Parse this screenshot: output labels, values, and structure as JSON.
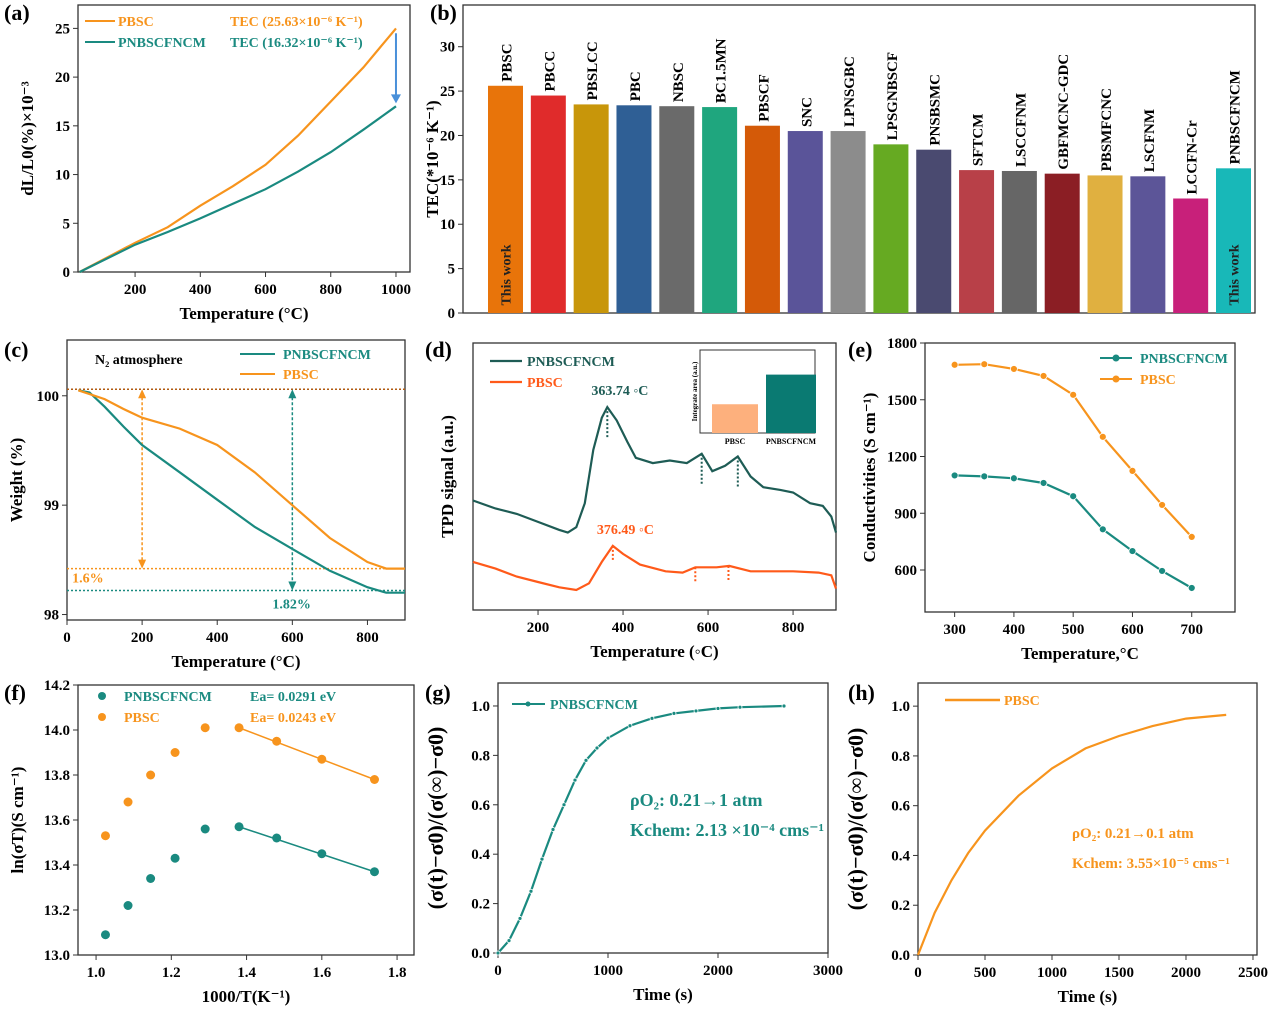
{
  "chart_data": [
    {
      "panel": "(a)",
      "type": "line",
      "xlabel": "Temperature (°C)",
      "ylabel": "dL/L0(%)×10⁻³",
      "xlim": [
        25,
        1043
      ],
      "ylim": [
        0,
        27.4
      ],
      "xticks": [
        200,
        400,
        600,
        800,
        1000
      ],
      "yticks": [
        0,
        5,
        10,
        15,
        20,
        25
      ],
      "series": [
        {
          "name": "PBSC",
          "color": "#f7941d",
          "legend_note": "TEC (25.63×10⁻⁶ K⁻¹)",
          "points": [
            [
              30,
              0
            ],
            [
              200,
              3.0
            ],
            [
              300,
              4.6
            ],
            [
              400,
              6.8
            ],
            [
              500,
              8.8
            ],
            [
              600,
              11.0
            ],
            [
              700,
              14.0
            ],
            [
              800,
              17.5
            ],
            [
              900,
              21.0
            ],
            [
              1000,
              25.0
            ]
          ]
        },
        {
          "name": "PNBSCFNCM",
          "color": "#1a8a80",
          "legend_note": "TEC (16.32×10⁻⁶ K⁻¹)",
          "points": [
            [
              30,
              0
            ],
            [
              200,
              2.8
            ],
            [
              300,
              4.1
            ],
            [
              400,
              5.5
            ],
            [
              500,
              7.0
            ],
            [
              600,
              8.5
            ],
            [
              700,
              10.3
            ],
            [
              800,
              12.3
            ],
            [
              900,
              14.6
            ],
            [
              1000,
              17.0
            ]
          ]
        }
      ],
      "arrow": {
        "x": 1000,
        "from": 24.5,
        "to": 17.3,
        "color": "#4a90d9"
      }
    },
    {
      "panel": "(b)",
      "type": "bar",
      "ylabel": "TEC(*10⁻⁶ K⁻¹)",
      "ylim": [
        0,
        34.7
      ],
      "yticks": [
        0,
        5,
        10,
        15,
        20,
        25,
        30
      ],
      "categories": [
        "PBSC",
        "PBCC",
        "PBSLCC",
        "PBC",
        "NBSC",
        "BC1.5MN",
        "PBSCF",
        "SNC",
        "LPNSGBC",
        "LPSGNBSCF",
        "PNSBSMC",
        "SFTCM",
        "LSCCFNM",
        "GBFMCNC-GDC",
        "PBSMFCNC",
        "LSCFNM",
        "LCCFN-Cr",
        "PNBSCFNCM"
      ],
      "values": [
        25.6,
        24.5,
        23.5,
        23.4,
        23.3,
        23.2,
        21.1,
        20.5,
        20.5,
        19.0,
        18.4,
        16.1,
        16.0,
        15.7,
        15.5,
        15.4,
        12.9,
        16.3
      ],
      "colors": [
        "#e8740a",
        "#e02b2b",
        "#c8960a",
        "#2f5f95",
        "#6a6a6a",
        "#1fa67e",
        "#d45a08",
        "#5a5499",
        "#8c8c8c",
        "#66aa22",
        "#4a4a70",
        "#b84048",
        "#666666",
        "#8b1e24",
        "#e0b040",
        "#5c5598",
        "#c8207a",
        "#18b8b8"
      ],
      "bar_notes": [
        {
          "index": 0,
          "text": "This work"
        },
        {
          "index": 17,
          "text": "This work"
        }
      ]
    },
    {
      "panel": "(c)",
      "type": "line",
      "xlabel": "Temperature (°C)",
      "ylabel": "Weight (%)",
      "xlim": [
        0,
        900
      ],
      "ylim": [
        97.95,
        100.51
      ],
      "xticks": [
        0,
        200,
        400,
        600,
        800
      ],
      "yticks": [
        98,
        99,
        100
      ],
      "annotation": "N₂ atmosphere",
      "series": [
        {
          "name": "PNBSCFNCM",
          "color": "#1a8a80",
          "points": [
            [
              30,
              100.05
            ],
            [
              60,
              100.03
            ],
            [
              100,
              99.9
            ],
            [
              150,
              99.72
            ],
            [
              200,
              99.55
            ],
            [
              300,
              99.3
            ],
            [
              400,
              99.05
            ],
            [
              500,
              98.8
            ],
            [
              600,
              98.6
            ],
            [
              700,
              98.4
            ],
            [
              800,
              98.25
            ],
            [
              850,
              98.2
            ],
            [
              900,
              98.2
            ]
          ]
        },
        {
          "name": "PBSC",
          "color": "#f7941d",
          "points": [
            [
              30,
              100.05
            ],
            [
              100,
              99.97
            ],
            [
              150,
              99.88
            ],
            [
              200,
              99.8
            ],
            [
              300,
              99.7
            ],
            [
              400,
              99.55
            ],
            [
              500,
              99.3
            ],
            [
              600,
              99.0
            ],
            [
              700,
              98.7
            ],
            [
              800,
              98.48
            ],
            [
              850,
              98.42
            ],
            [
              900,
              98.42
            ]
          ]
        }
      ],
      "reference_lines": [
        {
          "y": 100.06,
          "color": "#b05a10"
        },
        {
          "y": 98.42,
          "color": "#f7941d"
        },
        {
          "y": 98.22,
          "color": "#1a8a80"
        }
      ],
      "changes": [
        {
          "x": 200,
          "from": 100.06,
          "to": 98.42,
          "label": "1.6%",
          "color": "#f7941d"
        },
        {
          "x": 600,
          "from": 100.06,
          "to": 98.22,
          "label": "1.82%",
          "color": "#1a8a80"
        }
      ]
    },
    {
      "panel": "(d)",
      "type": "line",
      "xlabel": "Temperature (◦C)",
      "ylabel": "TPD signal (a.u.)",
      "xlim": [
        47,
        901
      ],
      "ylim": [
        0,
        1
      ],
      "xticks": [
        200,
        400,
        600,
        800
      ],
      "yticks": [],
      "series": [
        {
          "name": "PNBSCFNCM",
          "color": "#1e5c55",
          "points": [
            [
              47,
              0.41
            ],
            [
              100,
              0.38
            ],
            [
              150,
              0.36
            ],
            [
              200,
              0.33
            ],
            [
              250,
              0.3
            ],
            [
              270,
              0.29
            ],
            [
              290,
              0.31
            ],
            [
              310,
              0.4
            ],
            [
              330,
              0.6
            ],
            [
              350,
              0.72
            ],
            [
              363,
              0.76
            ],
            [
              385,
              0.71
            ],
            [
              410,
              0.63
            ],
            [
              430,
              0.57
            ],
            [
              470,
              0.55
            ],
            [
              510,
              0.56
            ],
            [
              550,
              0.55
            ],
            [
              585,
              0.585
            ],
            [
              610,
              0.52
            ],
            [
              640,
              0.54
            ],
            [
              670,
              0.575
            ],
            [
              700,
              0.5
            ],
            [
              730,
              0.46
            ],
            [
              770,
              0.45
            ],
            [
              800,
              0.44
            ],
            [
              840,
              0.4
            ],
            [
              870,
              0.39
            ],
            [
              890,
              0.35
            ],
            [
              901,
              0.29
            ]
          ],
          "peak_label": "363.74 ◦C",
          "markers": [
            363,
            585,
            670
          ]
        },
        {
          "name": "PBSC",
          "color": "#ff5a1a",
          "points": [
            [
              47,
              0.18
            ],
            [
              100,
              0.155
            ],
            [
              150,
              0.125
            ],
            [
              200,
              0.105
            ],
            [
              250,
              0.085
            ],
            [
              290,
              0.075
            ],
            [
              320,
              0.1
            ],
            [
              350,
              0.18
            ],
            [
              376,
              0.24
            ],
            [
              400,
              0.21
            ],
            [
              440,
              0.17
            ],
            [
              500,
              0.145
            ],
            [
              540,
              0.14
            ],
            [
              570,
              0.16
            ],
            [
              620,
              0.16
            ],
            [
              650,
              0.165
            ],
            [
              700,
              0.145
            ],
            [
              800,
              0.145
            ],
            [
              860,
              0.14
            ],
            [
              890,
              0.13
            ],
            [
              901,
              0.08
            ]
          ],
          "peak_label": "376.49 ◦C",
          "markers": [
            376,
            570,
            648
          ]
        }
      ],
      "inset": {
        "type": "bar",
        "ylabel": "Integrate area (a.u.)",
        "categories": [
          "PBSC",
          "PNBSCFNCM"
        ],
        "values": [
          0.33,
          0.67
        ],
        "colors": [
          "#fdb07d",
          "#0a7a72"
        ]
      }
    },
    {
      "panel": "(e)",
      "type": "line",
      "xlabel": "Temperature,°C",
      "ylabel": "Conductivities (S cm⁻¹)",
      "xlim": [
        250,
        773
      ],
      "ylim": [
        378,
        1800
      ],
      "xticks": [
        300,
        400,
        500,
        600,
        700
      ],
      "yticks": [
        600,
        900,
        1200,
        1500,
        1800
      ],
      "x": [
        300,
        350,
        400,
        450,
        500,
        550,
        600,
        650,
        700
      ],
      "series": [
        {
          "name": "PNBSCFNCM",
          "color": "#1a8a80",
          "values": [
            1100,
            1095,
            1085,
            1060,
            990,
            815,
            700,
            595,
            505
          ]
        },
        {
          "name": "PBSC",
          "color": "#f7941d",
          "values": [
            1685,
            1688,
            1663,
            1626,
            1526,
            1304,
            1124,
            944,
            775
          ]
        }
      ]
    },
    {
      "panel": "(f)",
      "type": "scatter",
      "xlabel": "1000/T(K⁻¹)",
      "ylabel": "ln(σT)(S cm⁻¹)",
      "xlim": [
        0.952,
        1.845
      ],
      "ylim": [
        13.0,
        14.2
      ],
      "xticks": [
        1.0,
        1.2,
        1.4,
        1.6,
        1.8
      ],
      "yticks": [
        13.0,
        13.2,
        13.4,
        13.6,
        13.8,
        14.0,
        14.2
      ],
      "x": [
        1.025,
        1.085,
        1.145,
        1.21,
        1.29,
        1.38,
        1.48,
        1.6,
        1.74
      ],
      "series": [
        {
          "name": "PNBSCFNCM",
          "color": "#1a8a80",
          "values": [
            13.09,
            13.22,
            13.34,
            13.43,
            13.56,
            13.57,
            13.52,
            13.45,
            13.37
          ],
          "fit_from_index": 5,
          "note": "Ea= 0.0291 eV"
        },
        {
          "name": "PBSC",
          "color": "#f7941d",
          "values": [
            13.53,
            13.68,
            13.8,
            13.9,
            14.01,
            14.01,
            13.95,
            13.87,
            13.78
          ],
          "fit_from_index": 5,
          "note": "Ea= 0.0243 eV"
        }
      ]
    },
    {
      "panel": "(g)",
      "type": "line",
      "xlabel": "Time (s)",
      "ylabel": "(σ(t)−σ0)/(σ(∞)−σ0)",
      "xlim": [
        0,
        3000
      ],
      "ylim": [
        0,
        1.093
      ],
      "xticks": [
        0,
        1000,
        2000,
        3000
      ],
      "yticks": [
        0.0,
        0.2,
        0.4,
        0.6,
        0.8,
        1.0
      ],
      "series": [
        {
          "name": "PNBSCFNCM",
          "color": "#1a8a80",
          "points": [
            [
              0,
              0
            ],
            [
              100,
              0.05
            ],
            [
              200,
              0.14
            ],
            [
              300,
              0.25
            ],
            [
              400,
              0.38
            ],
            [
              500,
              0.5
            ],
            [
              600,
              0.6
            ],
            [
              700,
              0.7
            ],
            [
              800,
              0.78
            ],
            [
              900,
              0.83
            ],
            [
              1000,
              0.87
            ],
            [
              1200,
              0.92
            ],
            [
              1400,
              0.95
            ],
            [
              1600,
              0.97
            ],
            [
              1800,
              0.98
            ],
            [
              2000,
              0.99
            ],
            [
              2200,
              0.995
            ],
            [
              2600,
              1.0
            ]
          ]
        }
      ],
      "annotations": [
        "ρO₂: 0.21→1 atm",
        "Kchem: 2.13 ×10⁻⁴ cms⁻¹"
      ]
    },
    {
      "panel": "(h)",
      "type": "line",
      "xlabel": "Time (s)",
      "ylabel": "(σ(t)−σ0)/(σ(∞)−σ0)",
      "xlim": [
        0,
        2530
      ],
      "ylim": [
        0,
        1.093
      ],
      "xticks": [
        0,
        500,
        1000,
        1500,
        2000,
        2500
      ],
      "yticks": [
        0.0,
        0.2,
        0.4,
        0.6,
        0.8,
        1.0
      ],
      "series": [
        {
          "name": "PBSC",
          "color": "#f7941d",
          "points": [
            [
              0,
              0
            ],
            [
              125,
              0.17
            ],
            [
              250,
              0.3
            ],
            [
              375,
              0.41
            ],
            [
              500,
              0.5
            ],
            [
              750,
              0.64
            ],
            [
              1000,
              0.75
            ],
            [
              1250,
              0.83
            ],
            [
              1500,
              0.88
            ],
            [
              1750,
              0.92
            ],
            [
              2000,
              0.95
            ],
            [
              2300,
              0.965
            ]
          ]
        }
      ],
      "annotations": [
        "ρO₂: 0.21→0.1 atm",
        "Kchem: 3.55×10⁻⁵ cms⁻¹"
      ]
    }
  ]
}
